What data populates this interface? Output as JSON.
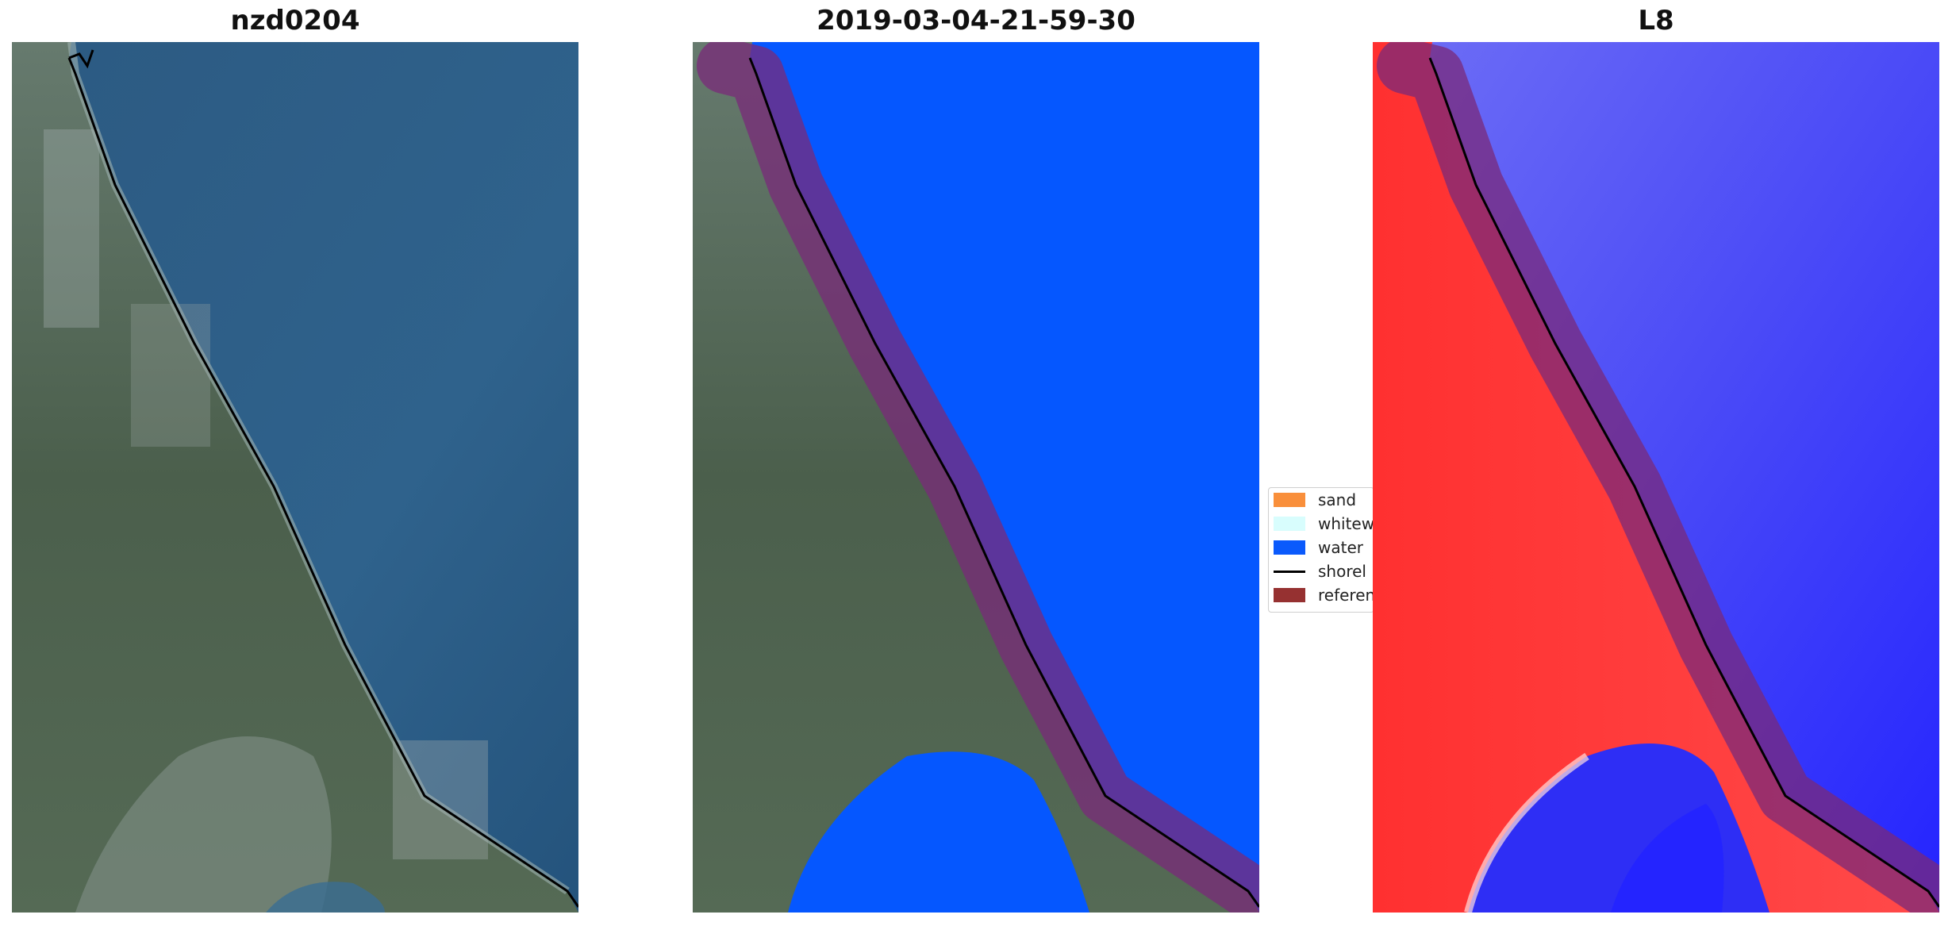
{
  "panels": [
    {
      "title": "nzd0204"
    },
    {
      "title": "2019-03-04-21-59-30"
    },
    {
      "title": "L8"
    }
  ],
  "legend": {
    "items": [
      {
        "label": "sand",
        "color": "#f98f3b"
      },
      {
        "label": "whitew",
        "color": "#d8fdfd"
      },
      {
        "label": "water",
        "color": "#0b5afc"
      },
      {
        "label": "shorel",
        "color": "#000000"
      },
      {
        "label": "referen",
        "color": "#963131"
      }
    ]
  },
  "colors": {
    "ocean_rgb": "#2f5f86",
    "land_rgb": "#4d6250",
    "water_class": "#0557ff",
    "reference_buffer": "#7a2a7a",
    "index_land": "#ff2a2a",
    "index_water": "#3030ff"
  }
}
